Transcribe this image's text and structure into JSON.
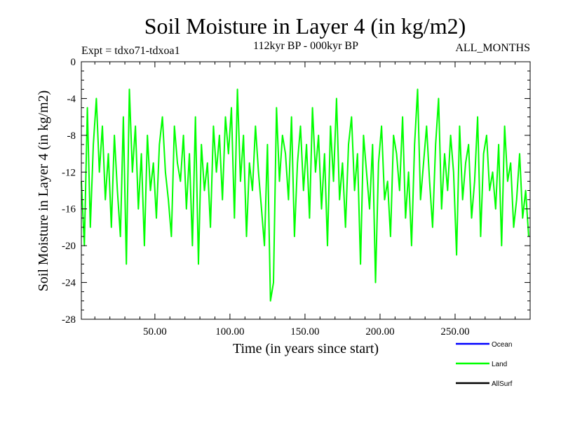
{
  "chart_data": {
    "type": "line",
    "title": "Soil Moisture in Layer 4 (in kg/m2)",
    "subtitle_left": "Expt = tdxo71-tdxoa1",
    "subtitle_center": "112kyr BP - 000kyr BP",
    "subtitle_right": "ALL_MONTHS",
    "xlabel": "Time (in years since start)",
    "ylabel": "Soil Moisture in Layer 4 (in kg/m2)",
    "xlim": [
      1,
      300
    ],
    "ylim": [
      -28,
      0
    ],
    "x_ticks": [
      50,
      100,
      150,
      200,
      250
    ],
    "x_tick_labels": [
      "50.00",
      "100.00",
      "150.00",
      "200.00",
      "250.00"
    ],
    "y_ticks": [
      0,
      -4,
      -8,
      -12,
      -16,
      -20,
      -24,
      -28
    ],
    "y_tick_labels": [
      "0",
      "-4",
      "-8",
      "-12",
      "-16",
      "-20",
      "-24",
      "-28"
    ],
    "legend": [
      {
        "name": "Ocean",
        "color": "#0000ff"
      },
      {
        "name": "Land",
        "color": "#00ff00"
      },
      {
        "name": "AllSurf",
        "color": "#000000"
      }
    ],
    "series": [
      {
        "name": "Land",
        "color": "#00ff00",
        "x": [
          1,
          3,
          5,
          7,
          9,
          11,
          13,
          15,
          17,
          19,
          21,
          23,
          25,
          27,
          29,
          31,
          33,
          35,
          37,
          39,
          41,
          43,
          45,
          47,
          49,
          51,
          53,
          55,
          57,
          59,
          61,
          63,
          65,
          67,
          69,
          71,
          73,
          75,
          77,
          79,
          81,
          83,
          85,
          87,
          89,
          91,
          93,
          95,
          97,
          99,
          101,
          103,
          105,
          107,
          109,
          111,
          113,
          115,
          117,
          119,
          121,
          123,
          125,
          127,
          129,
          131,
          133,
          135,
          137,
          139,
          141,
          143,
          145,
          147,
          149,
          151,
          153,
          155,
          157,
          159,
          161,
          163,
          165,
          167,
          169,
          171,
          173,
          175,
          177,
          179,
          181,
          183,
          185,
          187,
          189,
          191,
          193,
          195,
          197,
          199,
          201,
          203,
          205,
          207,
          209,
          211,
          213,
          215,
          217,
          219,
          221,
          223,
          225,
          227,
          229,
          231,
          233,
          235,
          237,
          239,
          241,
          243,
          245,
          247,
          249,
          251,
          253,
          255,
          257,
          259,
          261,
          263,
          265,
          267,
          269,
          271,
          273,
          275,
          277,
          279,
          281,
          283,
          285,
          287,
          289,
          291,
          293,
          295,
          297,
          299
        ],
        "values": [
          -13,
          -20,
          -5,
          -18,
          -9,
          -4,
          -12,
          -7,
          -15,
          -10,
          -18,
          -8,
          -14,
          -19,
          -6,
          -22,
          -3,
          -12,
          -7,
          -16,
          -10,
          -20,
          -8,
          -14,
          -11,
          -17,
          -9,
          -6,
          -12,
          -15,
          -19,
          -7,
          -11,
          -13,
          -8,
          -16,
          -10,
          -20,
          -6,
          -22,
          -9,
          -14,
          -11,
          -18,
          -7,
          -12,
          -8,
          -15,
          -6,
          -10,
          -5,
          -17,
          -3,
          -13,
          -8,
          -19,
          -11,
          -14,
          -7,
          -12,
          -16,
          -20,
          -9,
          -26,
          -24,
          -5,
          -13,
          -8,
          -10,
          -15,
          -6,
          -19,
          -11,
          -7,
          -14,
          -9,
          -17,
          -5,
          -12,
          -8,
          -16,
          -10,
          -20,
          -7,
          -13,
          -4,
          -15,
          -11,
          -18,
          -9,
          -6,
          -14,
          -10,
          -22,
          -8,
          -12,
          -16,
          -9,
          -24,
          -11,
          -7,
          -15,
          -13,
          -19,
          -8,
          -10,
          -14,
          -6,
          -17,
          -12,
          -20,
          -9,
          -3,
          -15,
          -11,
          -7,
          -13,
          -18,
          -9,
          -4,
          -16,
          -10,
          -14,
          -8,
          -12,
          -21,
          -7,
          -15,
          -11,
          -9,
          -17,
          -13,
          -6,
          -19,
          -10,
          -8,
          -14,
          -12,
          -16,
          -9,
          -20,
          -7,
          -13,
          -11,
          -18,
          -15,
          -10,
          -17,
          -14,
          -19
        ]
      }
    ]
  }
}
